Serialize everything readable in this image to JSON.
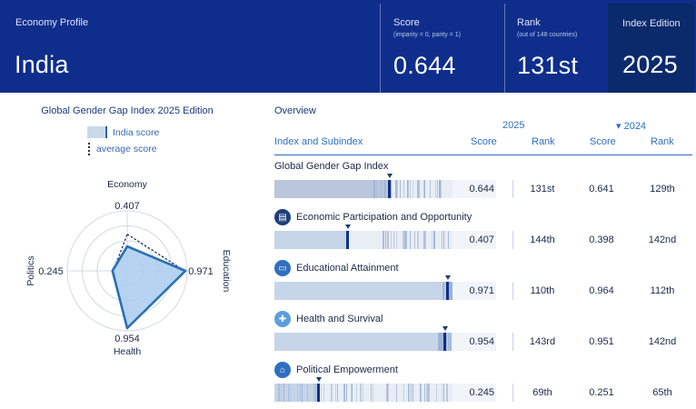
{
  "header": {
    "profile_label": "Economy Profile",
    "country": "India",
    "score_label": "Score",
    "score_note": "(imparity = 0, parity = 1)",
    "score_value": "0.644",
    "rank_label": "Rank",
    "rank_note": "(out of 148 countries)",
    "rank_value": "131st",
    "edition_label": "Index Edition",
    "edition_value": "2025"
  },
  "left": {
    "title": "Global Gender Gap Index 2025 Edition",
    "legend_country": "India score",
    "legend_average": "average score",
    "radar": {
      "axes": [
        {
          "label": "Economy",
          "value": "0.407",
          "score": 0.407,
          "avg": 0.61
        },
        {
          "label": "Education",
          "value": "0.971",
          "score": 0.971,
          "avg": 0.96
        },
        {
          "label": "Health",
          "value": "0.954",
          "score": 0.954,
          "avg": 0.96
        },
        {
          "label": "Politics",
          "value": "0.245",
          "score": 0.245,
          "avg": 0.23
        }
      ]
    }
  },
  "overview": {
    "title": "Overview",
    "year_current": "2025",
    "year_previous": "▾ 2024",
    "col_index": "Index and Subindex",
    "col_score": "Score",
    "col_rank": "Rank",
    "col_score_prev": "Score",
    "col_rank_prev": "Rank",
    "rows": [
      {
        "name": "Global Gender Gap Index",
        "score": "0.644",
        "rank": "131st",
        "score_prev": "0.641",
        "rank_prev": "129th",
        "score_value": 0.644,
        "icon": "none"
      },
      {
        "name": "Economic Participation and Opportunity",
        "score": "0.407",
        "rank": "144th",
        "score_prev": "0.398",
        "rank_prev": "142nd",
        "score_value": 0.407,
        "icon": "briefcase-icon"
      },
      {
        "name": "Educational Attainment",
        "score": "0.971",
        "rank": "110th",
        "score_prev": "0.964",
        "rank_prev": "112th",
        "score_value": 0.971,
        "icon": "book-icon"
      },
      {
        "name": "Health and Survival",
        "score": "0.954",
        "rank": "143rd",
        "score_prev": "0.951",
        "rank_prev": "142nd",
        "score_value": 0.954,
        "icon": "health-cross-icon"
      },
      {
        "name": "Political Empowerment",
        "score": "0.245",
        "rank": "69th",
        "score_prev": "0.251",
        "rank_prev": "65th",
        "score_value": 0.245,
        "icon": "government-building-icon"
      }
    ]
  },
  "colors": {
    "header_bg": "#0f2e8c",
    "edition_bg": "#0a2a6b",
    "accent": "#2f6fc0",
    "marker": "#0f2e8c",
    "radar_fill": "#a9cdee",
    "radar_stroke": "#2a6fb5"
  }
}
